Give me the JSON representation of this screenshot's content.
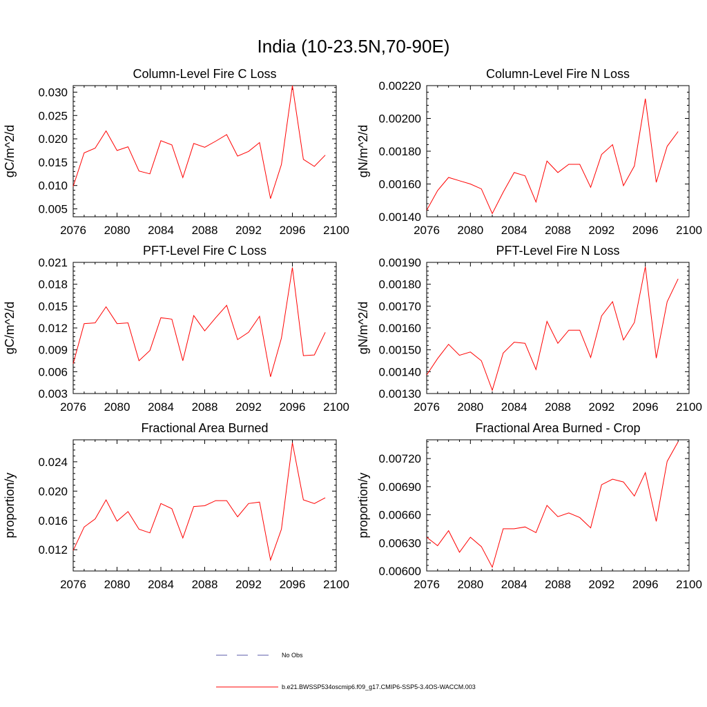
{
  "figure": {
    "title": "India (10-23.5N,70-90E)"
  },
  "legend": {
    "entries": [
      {
        "label": "No Obs",
        "color": "#5a5aa8",
        "style": "dashed"
      },
      {
        "label": "b.e21.BWSSP534oscmip6.f09_g17.CMIP6-SSP5-3.4OS-WACCM.003",
        "color": "#ff0000",
        "style": "solid"
      }
    ]
  },
  "chart_data": [
    {
      "type": "line",
      "title": "Column-Level Fire C Loss",
      "ylabel": "gC/m^2/d",
      "xlim": [
        2076,
        2100
      ],
      "xticks": [
        "2076",
        "2080",
        "2084",
        "2088",
        "2092",
        "2096",
        "2100"
      ],
      "ylim": [
        0.0033,
        0.0314
      ],
      "yticks": [
        "0.005",
        "0.010",
        "0.015",
        "0.020",
        "0.025",
        "0.030"
      ],
      "ytick_values": [
        0.005,
        0.01,
        0.015,
        0.02,
        0.025,
        0.03
      ],
      "series": [
        {
          "color": "#ff0000",
          "x": [
            2076,
            2077,
            2078,
            2079,
            2080,
            2081,
            2082,
            2083,
            2084,
            2085,
            2086,
            2087,
            2088,
            2089,
            2090,
            2091,
            2092,
            2093,
            2094,
            2095,
            2096,
            2097,
            2098,
            2099
          ],
          "values": [
            0.0098,
            0.017,
            0.018,
            0.0217,
            0.0175,
            0.0183,
            0.0131,
            0.0125,
            0.0196,
            0.0187,
            0.0117,
            0.019,
            0.0182,
            0.0195,
            0.0209,
            0.0163,
            0.0173,
            0.0192,
            0.0072,
            0.0145,
            0.0314,
            0.0156,
            0.0141,
            0.0165
          ]
        }
      ]
    },
    {
      "type": "line",
      "title": "Column-Level Fire N Loss",
      "ylabel": "gN/m^2/d",
      "xlim": [
        2076,
        2100
      ],
      "xticks": [
        "2076",
        "2080",
        "2084",
        "2088",
        "2092",
        "2096",
        "2100"
      ],
      "ylim": [
        0.0014,
        0.0022
      ],
      "yticks": [
        "0.00140",
        "0.00160",
        "0.00180",
        "0.00200",
        "0.00220"
      ],
      "ytick_values": [
        0.0014,
        0.0016,
        0.0018,
        0.002,
        0.0022
      ],
      "series": [
        {
          "color": "#ff0000",
          "x": [
            2076,
            2077,
            2078,
            2079,
            2080,
            2081,
            2082,
            2083,
            2084,
            2085,
            2086,
            2087,
            2088,
            2089,
            2090,
            2091,
            2092,
            2093,
            2094,
            2095,
            2096,
            2097,
            2098,
            2099
          ],
          "values": [
            0.00144,
            0.00156,
            0.00164,
            0.00162,
            0.0016,
            0.00157,
            0.00142,
            0.00155,
            0.00167,
            0.00165,
            0.00149,
            0.00174,
            0.00167,
            0.00172,
            0.00172,
            0.00158,
            0.00178,
            0.00184,
            0.00159,
            0.00171,
            0.00212,
            0.00161,
            0.00183,
            0.00192
          ]
        }
      ]
    },
    {
      "type": "line",
      "title": "PFT-Level Fire C Loss",
      "ylabel": "gC/m^2/d",
      "xlim": [
        2076,
        2100
      ],
      "xticks": [
        "2076",
        "2080",
        "2084",
        "2088",
        "2092",
        "2096",
        "2100"
      ],
      "ylim": [
        0.003,
        0.021
      ],
      "yticks": [
        "0.003",
        "0.006",
        "0.009",
        "0.012",
        "0.015",
        "0.018",
        "0.021"
      ],
      "ytick_values": [
        0.003,
        0.006,
        0.009,
        0.012,
        0.015,
        0.018,
        0.021
      ],
      "series": [
        {
          "color": "#ff0000",
          "x": [
            2076,
            2077,
            2078,
            2079,
            2080,
            2081,
            2082,
            2083,
            2084,
            2085,
            2086,
            2087,
            2088,
            2089,
            2090,
            2091,
            2092,
            2093,
            2094,
            2095,
            2096,
            2097,
            2098,
            2099
          ],
          "values": [
            0.0071,
            0.0126,
            0.0127,
            0.0149,
            0.0126,
            0.0127,
            0.0075,
            0.0089,
            0.0134,
            0.0132,
            0.0075,
            0.0137,
            0.0116,
            0.0134,
            0.0151,
            0.0104,
            0.0114,
            0.0136,
            0.0053,
            0.0106,
            0.0203,
            0.0082,
            0.0083,
            0.0114
          ]
        }
      ]
    },
    {
      "type": "line",
      "title": "PFT-Level Fire N Loss",
      "ylabel": "gN/m^2/d",
      "xlim": [
        2076,
        2100
      ],
      "xticks": [
        "2076",
        "2080",
        "2084",
        "2088",
        "2092",
        "2096",
        "2100"
      ],
      "ylim": [
        0.0013,
        0.0019
      ],
      "yticks": [
        "0.00130",
        "0.00140",
        "0.00150",
        "0.00160",
        "0.00170",
        "0.00180",
        "0.00190"
      ],
      "ytick_values": [
        0.0013,
        0.0014,
        0.0015,
        0.0016,
        0.0017,
        0.0018,
        0.0019
      ],
      "series": [
        {
          "color": "#ff0000",
          "x": [
            2076,
            2077,
            2078,
            2079,
            2080,
            2081,
            2082,
            2083,
            2084,
            2085,
            2086,
            2087,
            2088,
            2089,
            2090,
            2091,
            2092,
            2093,
            2094,
            2095,
            2096,
            2097,
            2098,
            2099
          ],
          "values": [
            0.001385,
            0.00146,
            0.001525,
            0.001475,
            0.00149,
            0.00145,
            0.001315,
            0.001485,
            0.001535,
            0.00153,
            0.00141,
            0.00163,
            0.00153,
            0.00159,
            0.00159,
            0.001465,
            0.001655,
            0.00172,
            0.001545,
            0.001625,
            0.00188,
            0.001462,
            0.00172,
            0.001825
          ]
        }
      ]
    },
    {
      "type": "line",
      "title": "Fractional Area Burned",
      "ylabel": "proportion/y",
      "xlim": [
        2076,
        2100
      ],
      "xticks": [
        "2076",
        "2080",
        "2084",
        "2088",
        "2092",
        "2096",
        "2100"
      ],
      "ylim": [
        0.0091,
        0.027
      ],
      "yticks": [
        "0.012",
        "0.016",
        "0.020",
        "0.024"
      ],
      "ytick_values": [
        0.012,
        0.016,
        0.02,
        0.024
      ],
      "series": [
        {
          "color": "#ff0000",
          "x": [
            2076,
            2077,
            2078,
            2079,
            2080,
            2081,
            2082,
            2083,
            2084,
            2085,
            2086,
            2087,
            2088,
            2089,
            2090,
            2091,
            2092,
            2093,
            2094,
            2095,
            2096,
            2097,
            2098,
            2099
          ],
          "values": [
            0.0119,
            0.0151,
            0.0162,
            0.0188,
            0.0159,
            0.0172,
            0.0148,
            0.0143,
            0.0183,
            0.0176,
            0.0136,
            0.0179,
            0.018,
            0.0187,
            0.0187,
            0.0165,
            0.0183,
            0.0185,
            0.0106,
            0.0148,
            0.0266,
            0.0188,
            0.0183,
            0.0191
          ]
        }
      ]
    },
    {
      "type": "line",
      "title": "Fractional Area Burned - Crop",
      "ylabel": "proportion/y",
      "xlim": [
        2076,
        2100
      ],
      "xticks": [
        "2076",
        "2080",
        "2084",
        "2088",
        "2092",
        "2096",
        "2100"
      ],
      "ylim": [
        0.006,
        0.0074
      ],
      "yticks": [
        "0.00600",
        "0.00630",
        "0.00660",
        "0.00690",
        "0.00720"
      ],
      "ytick_values": [
        0.006,
        0.0063,
        0.0066,
        0.0069,
        0.0072
      ],
      "series": [
        {
          "color": "#ff0000",
          "x": [
            2076,
            2077,
            2078,
            2079,
            2080,
            2081,
            2082,
            2083,
            2084,
            2085,
            2086,
            2087,
            2088,
            2089,
            2090,
            2091,
            2092,
            2093,
            2094,
            2095,
            2096,
            2097,
            2098,
            2099
          ],
          "values": [
            0.00636,
            0.00627,
            0.00643,
            0.0062,
            0.00636,
            0.00626,
            0.00604,
            0.00645,
            0.00645,
            0.00647,
            0.00641,
            0.0067,
            0.00658,
            0.00662,
            0.00657,
            0.00646,
            0.00692,
            0.00698,
            0.00695,
            0.0068,
            0.00705,
            0.00653,
            0.00717,
            0.00738
          ]
        }
      ]
    }
  ]
}
